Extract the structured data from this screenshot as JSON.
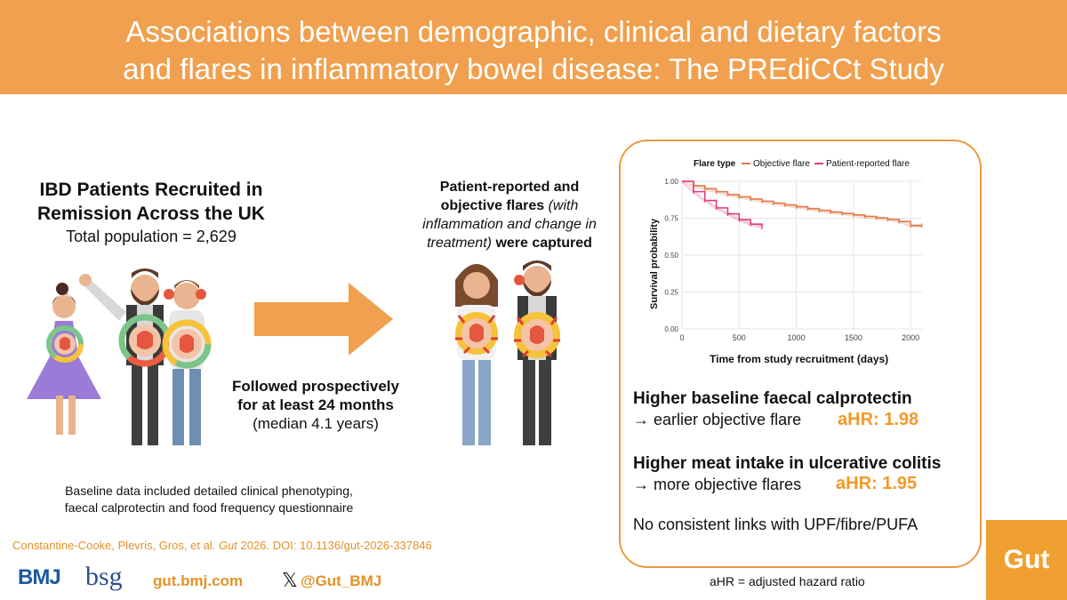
{
  "header": {
    "title_line1": "Associations between demographic, clinical and dietary factors",
    "title_line2": "and flares in inflammatory bowel disease: The PREdiCCt Study"
  },
  "recruitment": {
    "title": "IBD Patients Recruited in Remission Across the UK",
    "population": "Total population = 2,629"
  },
  "flares_captured": {
    "bold_a": "Patient-reported and objective flares",
    "italic": "(with inflammation and change in treatment)",
    "bold_b": "were captured"
  },
  "followup": {
    "bold": "Followed prospectively for at least 24 months",
    "detail": "(median 4.1 years)"
  },
  "baseline": {
    "line1": "Baseline data included detailed clinical phenotyping,",
    "line2": "faecal calprotectin and food frequency questionnaire"
  },
  "citation": {
    "authors": "Constantine-Cooke, Plevris, Gros, et al.",
    "journal": "Gut",
    "rest": "2026. DOI: 10.1136/gut-2026-337846"
  },
  "footer": {
    "bmj": "BMJ",
    "bsg": "bsg",
    "url": "gut.bmj.com",
    "handle": "@Gut_BMJ",
    "gut_logo": "Gut"
  },
  "findings": {
    "f1_title": "Higher baseline faecal calprotectin",
    "f1_text": "→ earlier objective flare",
    "f1_hr": "aHR: 1.98",
    "f2_title": "Higher meat intake in ulcerative colitis",
    "f2_text": "→ more objective flares",
    "f2_hr": "aHR: 1.95",
    "f3_text": "No consistent links with UPF/fibre/PUFA",
    "abbrev": "aHR = adjusted hazard ratio"
  },
  "colors": {
    "header": "#f0a04e",
    "accent": "#f09a2a",
    "objective": "#e07a4a",
    "patient": "#e03a7a"
  },
  "chart_data": {
    "type": "line",
    "legend_title": "Flare type",
    "legend_position": "top",
    "xlabel": "Time from study recruitment (days)",
    "ylabel": "Survival probability",
    "xlim": [
      0,
      2100
    ],
    "ylim": [
      0,
      1
    ],
    "x_ticks": [
      "0",
      "500",
      "1000",
      "1500",
      "2000"
    ],
    "y_ticks": [
      "0.00",
      "0.25",
      "0.50",
      "0.75",
      "1.00"
    ],
    "grid": true,
    "series": [
      {
        "name": "Objective flare",
        "color": "#e07a4a",
        "x": [
          0,
          100,
          200,
          300,
          400,
          500,
          600,
          700,
          800,
          900,
          1000,
          1100,
          1200,
          1300,
          1400,
          1500,
          1600,
          1700,
          1800,
          1900,
          2000,
          2100
        ],
        "y": [
          1.0,
          0.97,
          0.95,
          0.93,
          0.91,
          0.895,
          0.88,
          0.865,
          0.852,
          0.84,
          0.828,
          0.815,
          0.803,
          0.792,
          0.782,
          0.772,
          0.762,
          0.752,
          0.742,
          0.728,
          0.7,
          0.7
        ]
      },
      {
        "name": "Patient-reported flare",
        "color": "#e03a7a",
        "x": [
          0,
          100,
          200,
          300,
          400,
          500,
          600,
          700
        ],
        "y": [
          1.0,
          0.93,
          0.87,
          0.82,
          0.78,
          0.74,
          0.71,
          0.69
        ]
      }
    ]
  }
}
